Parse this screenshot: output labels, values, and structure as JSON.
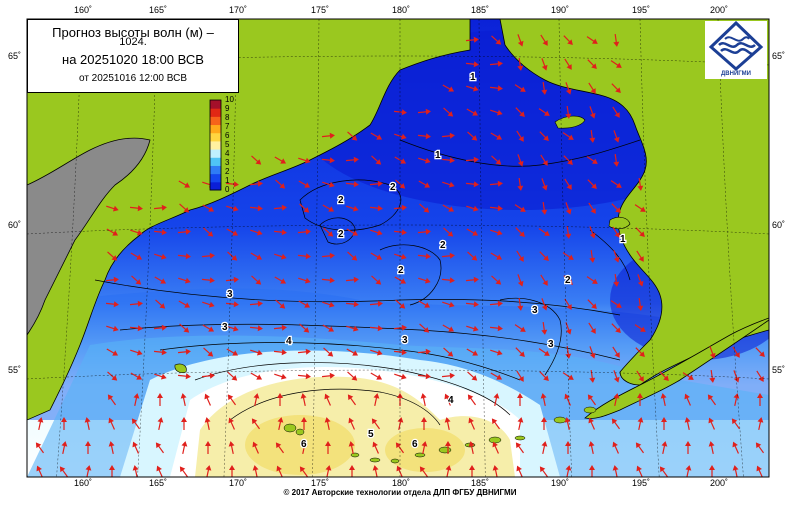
{
  "title": {
    "line1": "Прогноз высоты волн (м) –",
    "line1b": "1024.",
    "line2": "на 20251020 18:00 ВСВ",
    "line3": "от 20251016 12:00 ВСВ"
  },
  "logo": {
    "text": "ДВНИГМИ"
  },
  "footer": "© 2017 Авторские технологии отдела ДЛП ФГБУ ДВНИГМИ",
  "axes": {
    "lon_labels": [
      "160˚",
      "165˚",
      "170˚",
      "175˚",
      "180˚",
      "185˚",
      "190˚",
      "195˚",
      "200˚"
    ],
    "lat_labels": [
      "65˚",
      "60˚",
      "55˚"
    ]
  },
  "colorbar": {
    "ticks": [
      "10",
      "9",
      "8",
      "7",
      "6",
      "5",
      "4",
      "3",
      "2",
      "1",
      "0"
    ],
    "colors": [
      "#0b1fd8",
      "#1447ee",
      "#2f7cf5",
      "#4fc4f6",
      "#bff0ff",
      "#fff1a0",
      "#ffd640",
      "#ffaa1a",
      "#f6631a",
      "#e02814",
      "#a4102a"
    ]
  },
  "contour_labels": [
    "1",
    "1",
    "1",
    "2",
    "2",
    "2",
    "2",
    "2",
    "2",
    "3",
    "3",
    "3",
    "3",
    "3",
    "4",
    "4",
    "5",
    "6",
    "6"
  ],
  "colors": {
    "land": "#9ac81f",
    "land_gray": "#8a8a8a",
    "deep_blue": "#0b1fd8",
    "arrow": "#e0201c"
  }
}
